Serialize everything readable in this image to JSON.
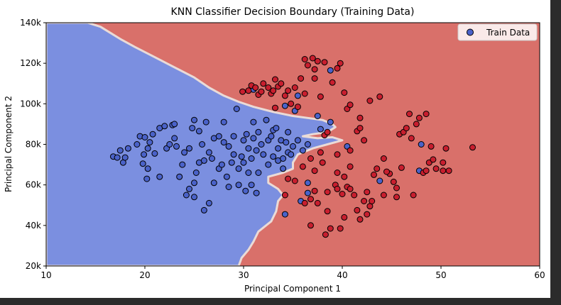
{
  "chart_data": {
    "type": "scatter",
    "title": "KNN Classifier Decision Boundary (Training Data)",
    "xlabel": "Principal Component 1",
    "ylabel": "Principal Component 2",
    "xlim": [
      10,
      60
    ],
    "ylim": [
      20000,
      140000
    ],
    "x_ticks": [
      10,
      20,
      30,
      40,
      50,
      60
    ],
    "x_tick_labels": [
      "10",
      "20",
      "30",
      "40",
      "50",
      "60"
    ],
    "y_ticks": [
      20000,
      40000,
      60000,
      80000,
      100000,
      120000,
      140000
    ],
    "y_tick_labels": [
      "20k",
      "40k",
      "60k",
      "80k",
      "100k",
      "120k",
      "140k"
    ],
    "grid": false,
    "legend": {
      "label": "Train Data",
      "position": "top-right"
    },
    "colors": {
      "class_0_region": "#7b8fe0",
      "class_1_region": "#d9706a",
      "boundary": "#eadbd7",
      "class_0_point": "#4a62c9",
      "class_1_point": "#c81e2e",
      "point_edge": "#000000",
      "figure_background": "#2b2b2b"
    },
    "decision_boundary": [
      [
        14.2,
        140000
      ],
      [
        15.5,
        138000
      ],
      [
        16.5,
        135000
      ],
      [
        17.5,
        132000
      ],
      [
        19,
        128000
      ],
      [
        21,
        123000
      ],
      [
        23,
        118000
      ],
      [
        25,
        113000
      ],
      [
        26.5,
        108000
      ],
      [
        28,
        104000
      ],
      [
        29.5,
        101000
      ],
      [
        31,
        98500
      ],
      [
        33,
        96000
      ],
      [
        35,
        94000
      ],
      [
        36.5,
        93000
      ],
      [
        38,
        92000
      ],
      [
        39,
        90000
      ],
      [
        39.3,
        88500
      ],
      [
        38.5,
        86000
      ],
      [
        37,
        85000
      ],
      [
        36,
        84000
      ],
      [
        37.5,
        83000
      ],
      [
        39,
        83500
      ],
      [
        40,
        82000
      ],
      [
        38.5,
        80000
      ],
      [
        37,
        78000
      ],
      [
        35.5,
        75000
      ],
      [
        35,
        71000
      ],
      [
        35,
        68000
      ],
      [
        34,
        66000
      ],
      [
        32.5,
        64000
      ],
      [
        32.5,
        61000
      ],
      [
        33.5,
        58000
      ],
      [
        34,
        55000
      ],
      [
        33.5,
        52000
      ],
      [
        33.3,
        47000
      ],
      [
        32.8,
        42000
      ],
      [
        31.5,
        37000
      ],
      [
        31,
        32000
      ],
      [
        30.5,
        28000
      ],
      [
        29.8,
        24000
      ],
      [
        29.5,
        20000
      ]
    ],
    "series": [
      {
        "class": 0,
        "points": [
          [
            16.8,
            74000
          ],
          [
            17.2,
            73500
          ],
          [
            17.5,
            77000
          ],
          [
            17.8,
            71000
          ],
          [
            18,
            73500
          ],
          [
            18.3,
            78000
          ],
          [
            19.2,
            80000
          ],
          [
            19.5,
            84000
          ],
          [
            19.8,
            70500
          ],
          [
            19.9,
            75000
          ],
          [
            20,
            83500
          ],
          [
            20.2,
            63000
          ],
          [
            20.3,
            68000
          ],
          [
            20.3,
            78000
          ],
          [
            20.5,
            81000
          ],
          [
            20.8,
            85000
          ],
          [
            21,
            75500
          ],
          [
            21.5,
            88000
          ],
          [
            21.5,
            64000
          ],
          [
            22,
            89000
          ],
          [
            22.2,
            78000
          ],
          [
            22.5,
            80000
          ],
          [
            22.8,
            89500
          ],
          [
            23,
            90000
          ],
          [
            23,
            83000
          ],
          [
            23.2,
            79000
          ],
          [
            23.5,
            64000
          ],
          [
            23.8,
            70000
          ],
          [
            24,
            76000
          ],
          [
            24.2,
            55000
          ],
          [
            24.5,
            58000
          ],
          [
            24.5,
            78000
          ],
          [
            24.8,
            88000
          ],
          [
            25,
            61000
          ],
          [
            25,
            92000
          ],
          [
            25,
            54000
          ],
          [
            25.2,
            66000
          ],
          [
            25.5,
            86500
          ],
          [
            25.5,
            71000
          ],
          [
            25.8,
            80000
          ],
          [
            26,
            72000
          ],
          [
            26,
            47500
          ],
          [
            26.2,
            91000
          ],
          [
            26.5,
            51000
          ],
          [
            26.5,
            76000
          ],
          [
            26.8,
            73000
          ],
          [
            27,
            61000
          ],
          [
            27,
            83000
          ],
          [
            27.5,
            68000
          ],
          [
            27.5,
            84000
          ],
          [
            27.8,
            70000
          ],
          [
            28,
            91000
          ],
          [
            28,
            81000
          ],
          [
            28.3,
            64000
          ],
          [
            28.5,
            79000
          ],
          [
            28.5,
            59000
          ],
          [
            28.8,
            71000
          ],
          [
            29,
            75000
          ],
          [
            29,
            84000
          ],
          [
            29.3,
            97500
          ],
          [
            29.5,
            60000
          ],
          [
            29.5,
            68000
          ],
          [
            29.8,
            74000
          ],
          [
            30,
            71000
          ],
          [
            30,
            82000
          ],
          [
            30.2,
            57000
          ],
          [
            30.3,
            85000
          ],
          [
            30.5,
            78000
          ],
          [
            30.5,
            66000
          ],
          [
            30.8,
            60000
          ],
          [
            30.8,
            73000
          ],
          [
            31,
            83000
          ],
          [
            31,
            91000
          ],
          [
            31,
            107000
          ],
          [
            31.3,
            77000
          ],
          [
            31.3,
            56000
          ],
          [
            31.5,
            86000
          ],
          [
            31.5,
            66000
          ],
          [
            31.8,
            80000
          ],
          [
            32,
            75000
          ],
          [
            32.3,
            92000
          ],
          [
            32.5,
            70000
          ],
          [
            32.5,
            82000
          ],
          [
            32.8,
            84000
          ],
          [
            33,
            74000
          ],
          [
            33,
            87000
          ],
          [
            33.3,
            88000
          ],
          [
            33.5,
            78000
          ],
          [
            33.5,
            72000
          ],
          [
            33.8,
            82000
          ],
          [
            34,
            73000
          ],
          [
            34,
            68000
          ],
          [
            34.2,
            99000
          ],
          [
            34.3,
            81000
          ],
          [
            34.5,
            76000
          ],
          [
            34.5,
            86000
          ],
          [
            34.8,
            75000
          ],
          [
            35,
            79000
          ],
          [
            35.2,
            96500
          ],
          [
            35.5,
            82000
          ],
          [
            36,
            77000
          ],
          [
            36.5,
            80000
          ],
          [
            34.2,
            45500
          ],
          [
            35.5,
            104000
          ],
          [
            38.8,
            116500
          ],
          [
            37.5,
            94000
          ],
          [
            37.8,
            87500
          ],
          [
            36.5,
            61000
          ],
          [
            36.5,
            56000
          ],
          [
            35.8,
            52000
          ],
          [
            38.8,
            91000
          ],
          [
            40.5,
            79000
          ],
          [
            48,
            80000
          ],
          [
            43.8,
            62000
          ],
          [
            47.8,
            67000
          ]
        ]
      },
      {
        "class": 1,
        "points": [
          [
            29.9,
            106000
          ],
          [
            30.5,
            106500
          ],
          [
            30.8,
            109000
          ],
          [
            31.2,
            108000
          ],
          [
            31.5,
            104500
          ],
          [
            31.8,
            106000
          ],
          [
            32,
            110000
          ],
          [
            32.5,
            108000
          ],
          [
            32.8,
            105000
          ],
          [
            33,
            106500
          ],
          [
            33.2,
            112000
          ],
          [
            33.5,
            108500
          ],
          [
            33.8,
            110000
          ],
          [
            34.2,
            104000
          ],
          [
            34.5,
            106500
          ],
          [
            34.8,
            100000
          ],
          [
            35.2,
            108000
          ],
          [
            35.5,
            98500
          ],
          [
            35.8,
            112500
          ],
          [
            36.2,
            122000
          ],
          [
            36.5,
            119000
          ],
          [
            37,
            122500
          ],
          [
            37.2,
            117000
          ],
          [
            37.5,
            121000
          ],
          [
            37.2,
            112500
          ],
          [
            38.2,
            120500
          ],
          [
            39,
            110500
          ],
          [
            39.5,
            117500
          ],
          [
            39.8,
            120000
          ],
          [
            40.2,
            105500
          ],
          [
            40.5,
            97500
          ],
          [
            40.8,
            99500
          ],
          [
            41.5,
            86500
          ],
          [
            41.8,
            88000
          ],
          [
            42.2,
            82000
          ],
          [
            41.8,
            93000
          ],
          [
            42.8,
            101500
          ],
          [
            43.8,
            103500
          ],
          [
            40.8,
            77000
          ],
          [
            38.2,
            84500
          ],
          [
            37.8,
            76000
          ],
          [
            38.5,
            86000
          ],
          [
            36.8,
            73000
          ],
          [
            36,
            69000
          ],
          [
            37.2,
            67000
          ],
          [
            38,
            71000
          ],
          [
            39.5,
            75000
          ],
          [
            39.5,
            66000
          ],
          [
            40.8,
            69000
          ],
          [
            40.2,
            64000
          ],
          [
            39.3,
            60000
          ],
          [
            39.5,
            58000
          ],
          [
            38.5,
            56500
          ],
          [
            40,
            55500
          ],
          [
            41.2,
            55000
          ],
          [
            42.5,
            56500
          ],
          [
            42.8,
            49500
          ],
          [
            42.2,
            52000
          ],
          [
            41.5,
            47500
          ],
          [
            42.5,
            45500
          ],
          [
            41.8,
            43000
          ],
          [
            40.2,
            44000
          ],
          [
            38.5,
            47000
          ],
          [
            37.5,
            51000
          ],
          [
            36.8,
            53000
          ],
          [
            36.2,
            51000
          ],
          [
            37.2,
            57000
          ],
          [
            34.2,
            55000
          ],
          [
            34.5,
            63000
          ],
          [
            35.2,
            62000
          ],
          [
            36.8,
            40000
          ],
          [
            38.3,
            35500
          ],
          [
            38.8,
            38500
          ],
          [
            39.8,
            38500
          ],
          [
            40.5,
            59000
          ],
          [
            40.8,
            58000
          ],
          [
            43.2,
            65000
          ],
          [
            43.5,
            68000
          ],
          [
            44.2,
            73000
          ],
          [
            44.8,
            65500
          ],
          [
            45.2,
            61500
          ],
          [
            45.5,
            58500
          ],
          [
            45.8,
            85000
          ],
          [
            46.2,
            86000
          ],
          [
            46.5,
            88000
          ],
          [
            46.8,
            95000
          ],
          [
            47,
            83000
          ],
          [
            47.5,
            90000
          ],
          [
            47.8,
            93000
          ],
          [
            48.5,
            95000
          ],
          [
            48.8,
            71000
          ],
          [
            49,
            79000
          ],
          [
            49.2,
            72500
          ],
          [
            48.2,
            66000
          ],
          [
            46,
            68500
          ],
          [
            45.5,
            54000
          ],
          [
            47.2,
            55000
          ],
          [
            48.5,
            67000
          ],
          [
            49.5,
            68000
          ],
          [
            50.2,
            71000
          ],
          [
            50.5,
            78000
          ],
          [
            50.2,
            67000
          ],
          [
            50.8,
            67000
          ],
          [
            53.2,
            78500
          ],
          [
            44.5,
            66500
          ],
          [
            43,
            52000
          ],
          [
            44.2,
            55000
          ],
          [
            36.2,
            105000
          ],
          [
            37.8,
            103500
          ],
          [
            33.2,
            98000
          ]
        ]
      }
    ]
  }
}
